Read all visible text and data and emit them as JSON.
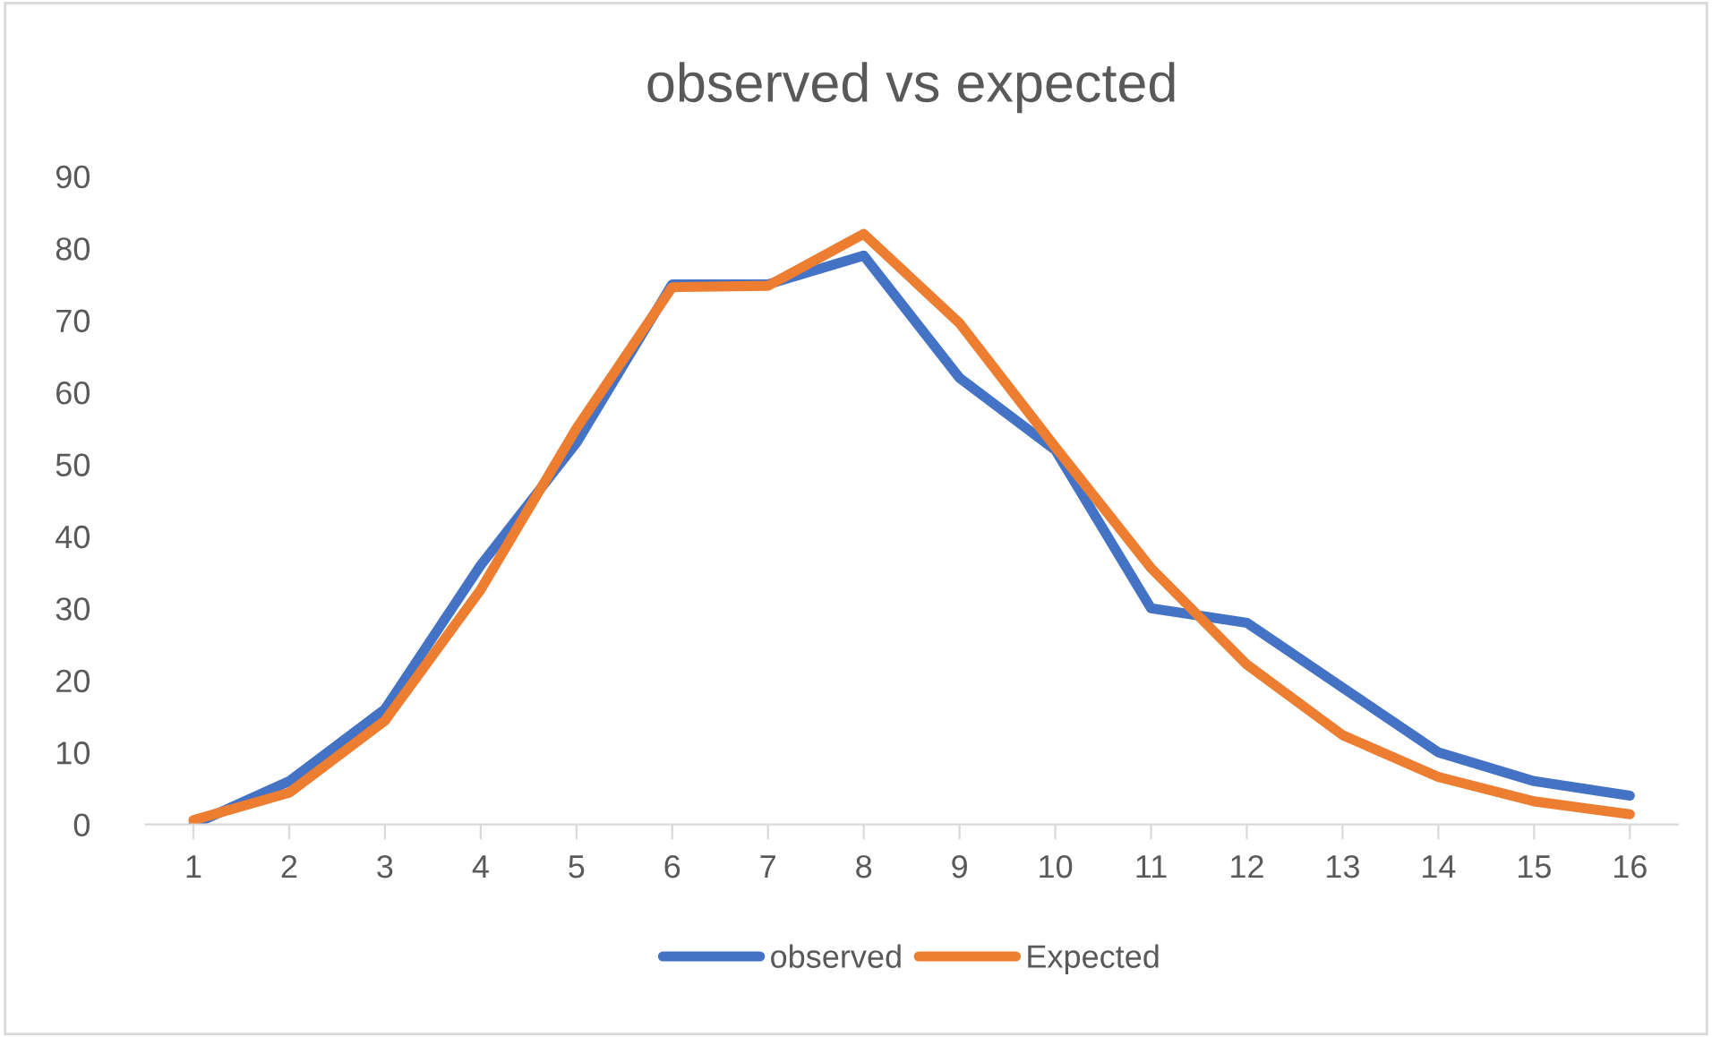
{
  "chart_data": {
    "type": "line",
    "title": "observed vs expected",
    "categories": [
      "1",
      "2",
      "3",
      "4",
      "5",
      "6",
      "7",
      "8",
      "9",
      "10",
      "11",
      "12",
      "13",
      "14",
      "15",
      "16"
    ],
    "series": [
      {
        "name": "observed",
        "color": "#4472c4",
        "values": [
          0,
          6,
          16,
          36,
          53,
          75,
          75,
          79,
          62,
          52,
          30,
          28,
          19,
          10,
          6,
          4
        ]
      },
      {
        "name": "Expected",
        "color": "#ed7d31",
        "values": [
          0.6,
          4.4,
          14.4,
          32.6,
          55,
          74.6,
          74.8,
          82,
          69.6,
          52.4,
          35.6,
          22.2,
          12.4,
          6.6,
          3.2,
          1.4
        ]
      }
    ],
    "ylim": [
      0,
      90
    ],
    "yticks": [
      0,
      10,
      20,
      30,
      40,
      50,
      60,
      70,
      80,
      90
    ],
    "grid": false,
    "legend": "bottom",
    "marker": "none",
    "line_style": "solid"
  }
}
